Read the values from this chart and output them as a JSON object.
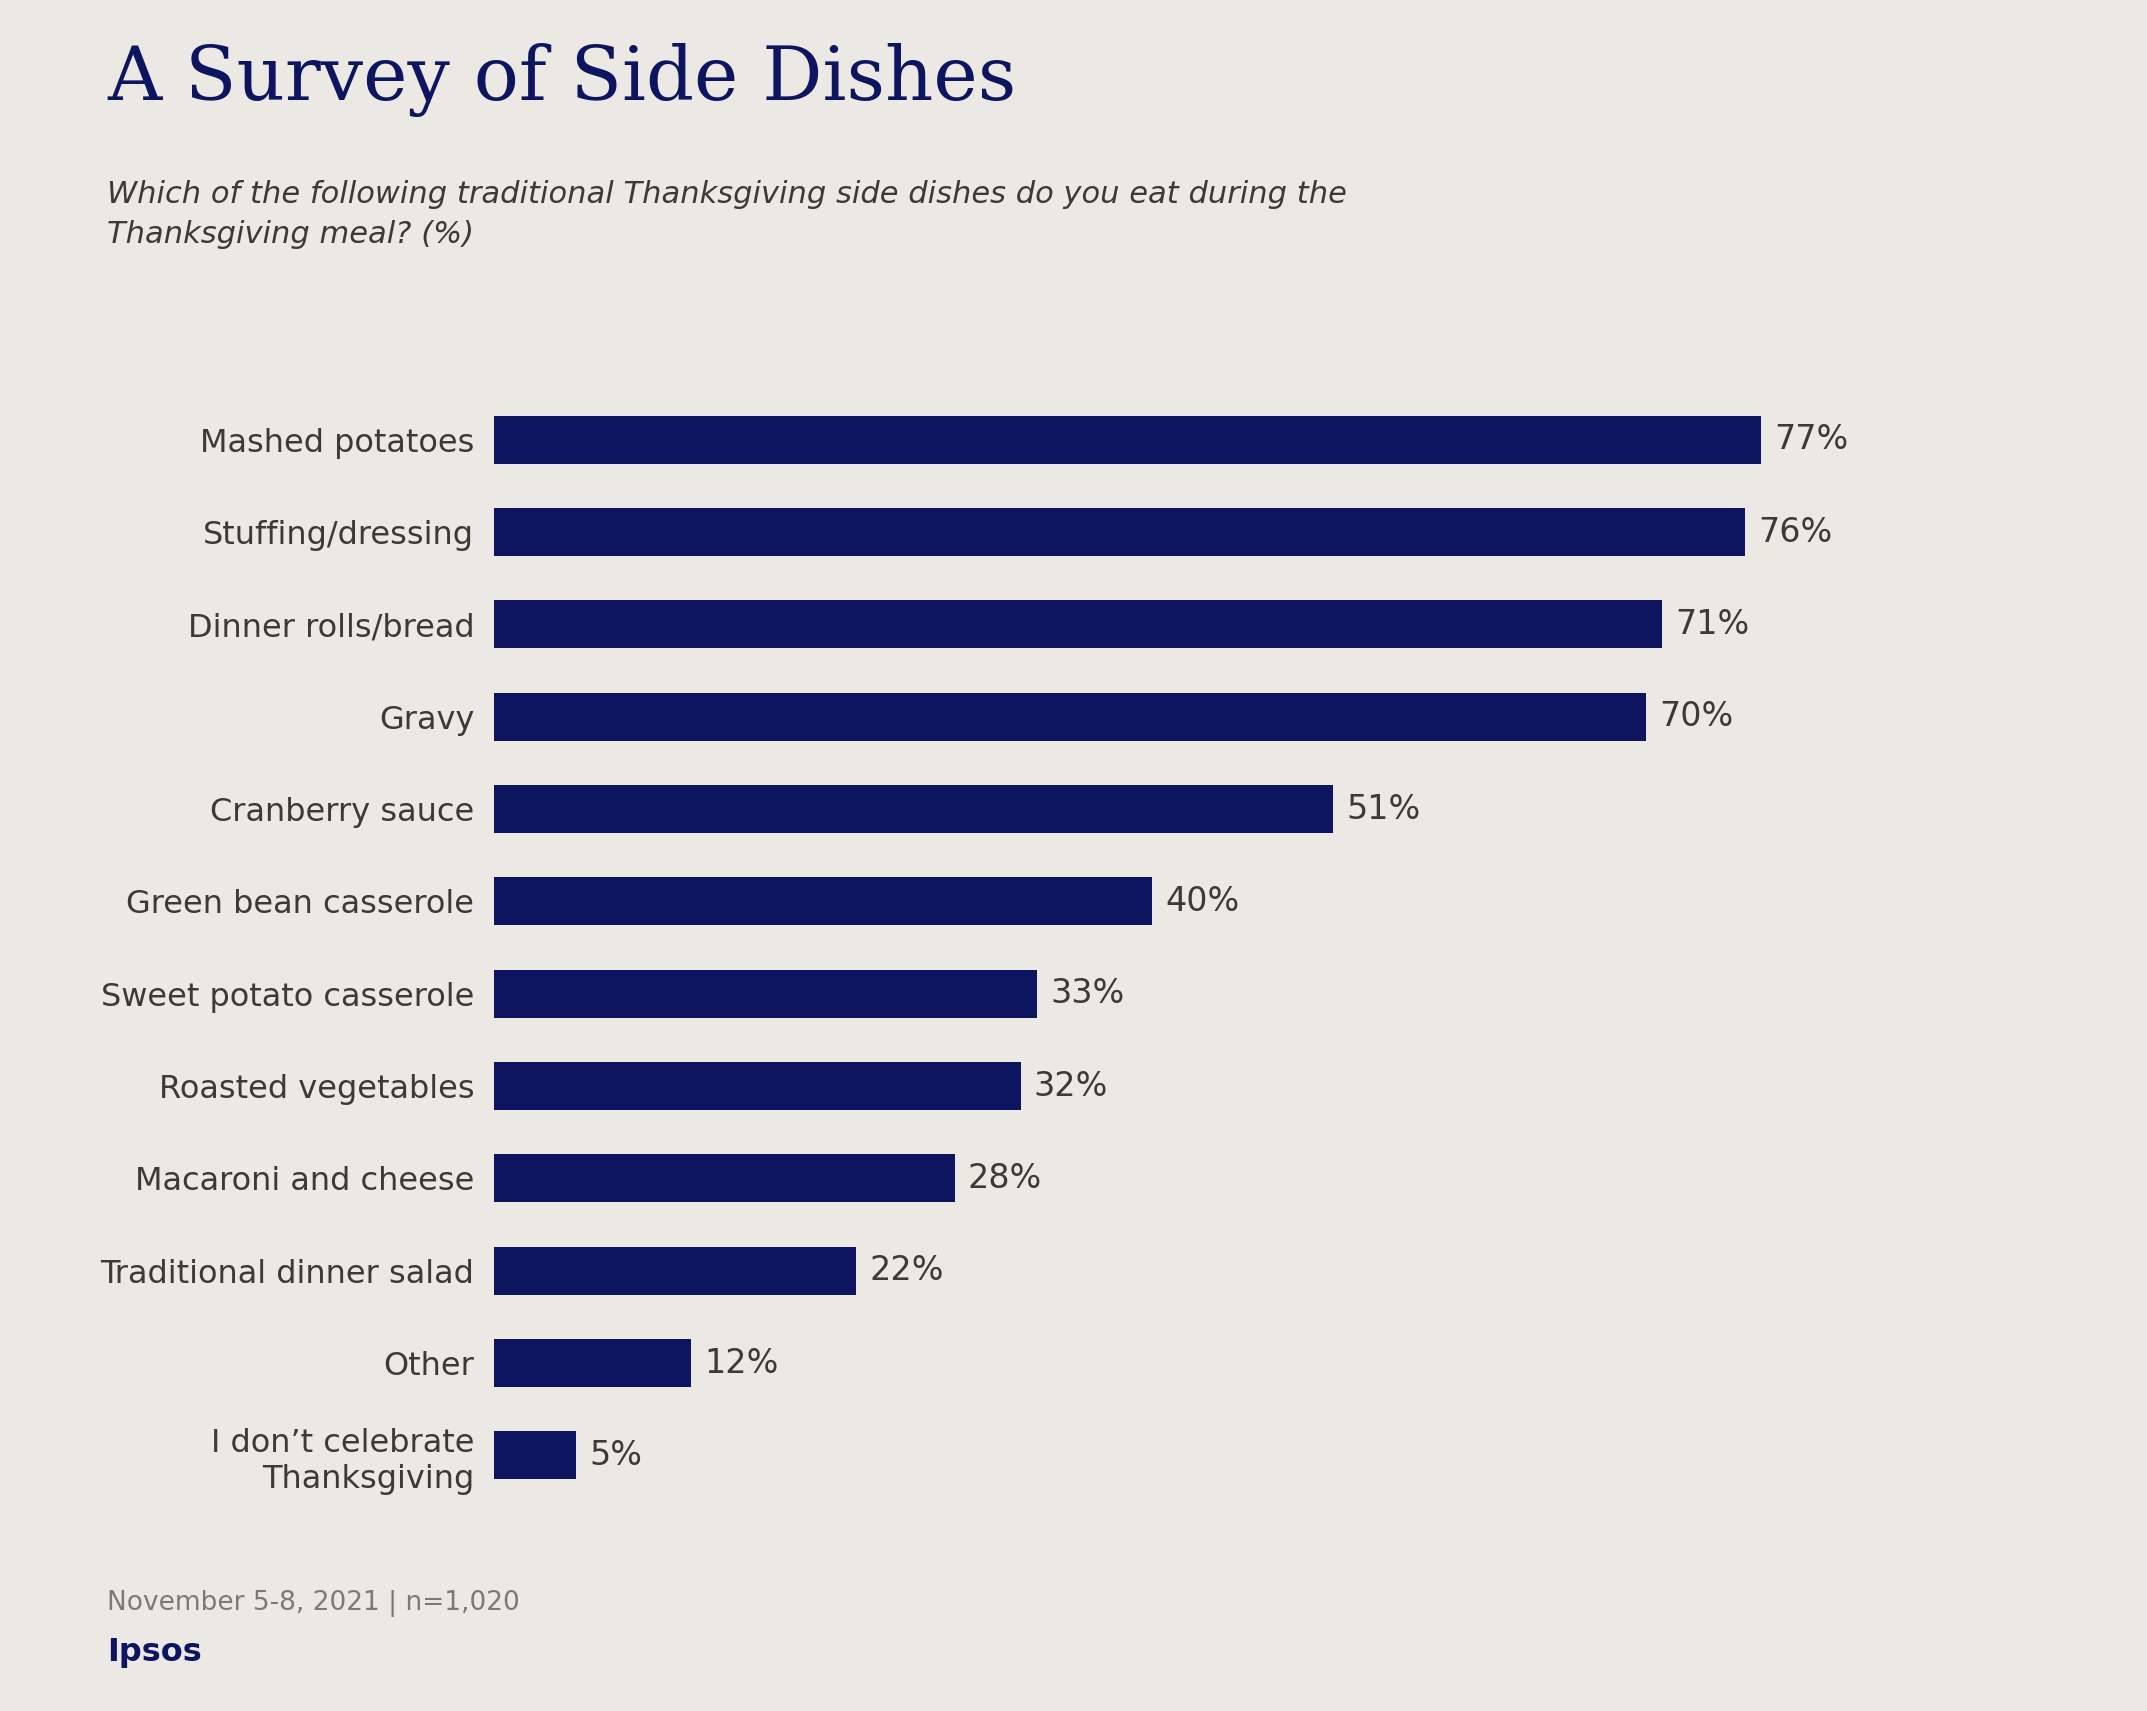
{
  "title": "A Survey of Side Dishes",
  "subtitle": "Which of the following traditional Thanksgiving side dishes do you eat during the\nThanksgiving meal? (%)",
  "categories": [
    "Mashed potatoes",
    "Stuffing/dressing",
    "Dinner rolls/bread",
    "Gravy",
    "Cranberry sauce",
    "Green bean casserole",
    "Sweet potato casserole",
    "Roasted vegetables",
    "Macaroni and cheese",
    "Traditional dinner salad",
    "Other",
    "I don’t celebrate\nThanksgiving"
  ],
  "values": [
    77,
    76,
    71,
    70,
    51,
    40,
    33,
    32,
    28,
    22,
    12,
    5
  ],
  "bar_color": "#0d1560",
  "background_color": "#ece9e4",
  "title_color": "#0d1560",
  "subtitle_color": "#3a3a3a",
  "label_color": "#3a3a3a",
  "value_color": "#3a3a3a",
  "footnote": "November 5-8, 2021 | n=1,020",
  "brand": "Ipsos",
  "brand_color": "#0d1560",
  "footnote_color": "#7a7a7a",
  "xlim": [
    0,
    90
  ]
}
